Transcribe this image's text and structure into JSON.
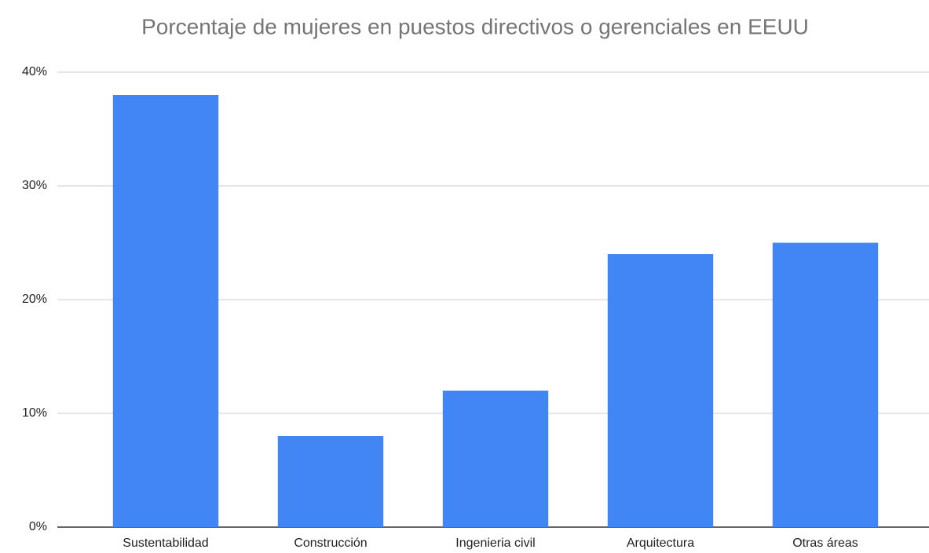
{
  "chart_data": {
    "type": "bar",
    "title": "Porcentaje de mujeres en puestos directivos o gerenciales en EEUU",
    "categories": [
      "Sustentabilidad",
      "Construcción",
      "Ingenieria civil",
      "Arquitectura",
      "Otras áreas"
    ],
    "values": [
      38,
      8,
      12,
      24,
      25
    ],
    "color": "#4285f4",
    "ylim": [
      0,
      40
    ],
    "yticks": [
      {
        "value": 0,
        "label": "0%"
      },
      {
        "value": 10,
        "label": "10%"
      },
      {
        "value": 20,
        "label": "20%"
      },
      {
        "value": 30,
        "label": "30%"
      },
      {
        "value": 40,
        "label": "40%"
      }
    ],
    "grid": true
  }
}
